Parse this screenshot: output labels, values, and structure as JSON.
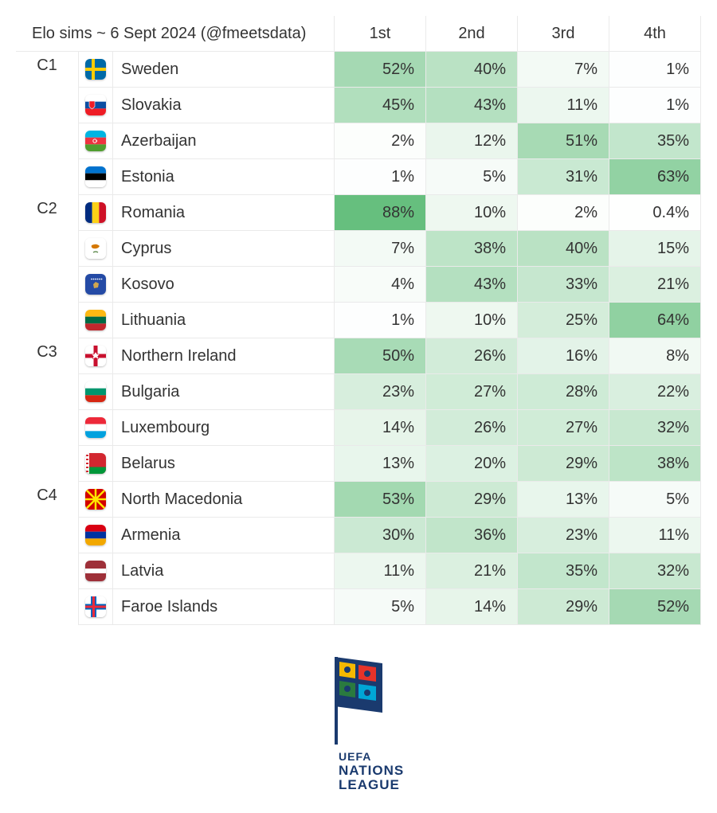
{
  "title": "Elo sims ~ 6 Sept 2024 (@fmeetsdata)",
  "columns": [
    "1st",
    "2nd",
    "3rd",
    "4th"
  ],
  "heatmap": {
    "min_color": "#ffffff",
    "max_color": "#63be7b"
  },
  "logo": {
    "line1": "UEFA",
    "line2": "NATIONS",
    "line3": "LEAGUE",
    "text_color": "#1a3a6e"
  },
  "groups": [
    {
      "label": "C1",
      "rows": [
        {
          "country": "Sweden",
          "flag": "sweden",
          "pcts": [
            52,
            40,
            7,
            1
          ]
        },
        {
          "country": "Slovakia",
          "flag": "slovakia",
          "pcts": [
            45,
            43,
            11,
            1
          ]
        },
        {
          "country": "Azerbaijan",
          "flag": "azerbaijan",
          "pcts": [
            2,
            12,
            51,
            35
          ]
        },
        {
          "country": "Estonia",
          "flag": "estonia",
          "pcts": [
            1,
            5,
            31,
            63
          ]
        }
      ]
    },
    {
      "label": "C2",
      "rows": [
        {
          "country": "Romania",
          "flag": "romania",
          "pcts": [
            88,
            10,
            2,
            0.4
          ]
        },
        {
          "country": "Cyprus",
          "flag": "cyprus",
          "pcts": [
            7,
            38,
            40,
            15
          ]
        },
        {
          "country": "Kosovo",
          "flag": "kosovo",
          "pcts": [
            4,
            43,
            33,
            21
          ]
        },
        {
          "country": "Lithuania",
          "flag": "lithuania",
          "pcts": [
            1,
            10,
            25,
            64
          ]
        }
      ]
    },
    {
      "label": "C3",
      "rows": [
        {
          "country": "Northern Ireland",
          "flag": "nireland",
          "pcts": [
            50,
            26,
            16,
            8
          ]
        },
        {
          "country": "Bulgaria",
          "flag": "bulgaria",
          "pcts": [
            23,
            27,
            28,
            22
          ]
        },
        {
          "country": "Luxembourg",
          "flag": "luxembourg",
          "pcts": [
            14,
            26,
            27,
            32
          ]
        },
        {
          "country": "Belarus",
          "flag": "belarus",
          "pcts": [
            13,
            20,
            29,
            38
          ]
        }
      ]
    },
    {
      "label": "C4",
      "rows": [
        {
          "country": "North Macedonia",
          "flag": "nmacedonia",
          "pcts": [
            53,
            29,
            13,
            5
          ]
        },
        {
          "country": "Armenia",
          "flag": "armenia",
          "pcts": [
            30,
            36,
            23,
            11
          ]
        },
        {
          "country": "Latvia",
          "flag": "latvia",
          "pcts": [
            11,
            21,
            35,
            32
          ]
        },
        {
          "country": "Faroe Islands",
          "flag": "faroe",
          "pcts": [
            5,
            14,
            29,
            52
          ]
        }
      ]
    }
  ]
}
